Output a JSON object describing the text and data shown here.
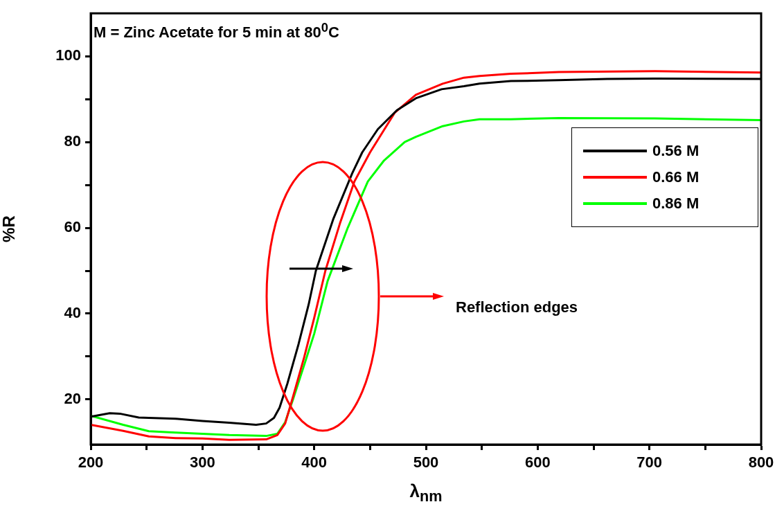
{
  "chart_data": {
    "type": "line",
    "title": "M = Zinc Acetate for 5 min at 80$^{0}$C",
    "xlabel": "λ$_{nm}$",
    "ylabel": "%R",
    "xlim": [
      200,
      800
    ],
    "ylim": [
      9.5,
      110
    ],
    "xticks": [
      200,
      {
        "value": 250,
        "label": null
      },
      300,
      {
        "value": 350,
        "label": null
      },
      400,
      {
        "value": 450,
        "label": null
      },
      500,
      {
        "value": 550,
        "label": null
      },
      600,
      {
        "value": 650,
        "label": null
      },
      700,
      {
        "value": 750,
        "label": null
      },
      800
    ],
    "yticks": [
      20,
      {
        "value": 30,
        "label": null
      },
      40,
      {
        "value": 50,
        "label": null
      },
      60,
      {
        "value": 70,
        "label": null
      },
      80,
      {
        "value": 90,
        "label": null
      },
      100
    ],
    "grid": false,
    "legend": "right",
    "line_style": "solid",
    "annotations": [
      "Reflection edges"
    ],
    "series": [
      {
        "name": "0.56 M",
        "color": "#000000",
        "x": [
          200,
          217,
          226,
          243,
          252,
          276,
          300,
          324,
          348,
          357,
          364,
          369,
          376,
          386,
          395,
          401.5,
          417,
          434,
          443,
          457,
          474,
          491,
          514,
          534,
          548,
          576,
          619,
          662,
          705,
          800
        ],
        "values": [
          16.0,
          16.8,
          16.7,
          15.8,
          15.7,
          15.5,
          15.0,
          14.6,
          14.1,
          14.4,
          15.7,
          18.1,
          23.7,
          32.9,
          42.1,
          50,
          62,
          72.7,
          77.6,
          83,
          87.4,
          90.2,
          92.3,
          93.0,
          93.6,
          94.2,
          94.4,
          94.7,
          94.8,
          94.7
        ]
      },
      {
        "name": "0.66 M",
        "color": "#ff0000",
        "x": [
          200,
          229,
          252,
          276,
          300,
          324,
          357,
          367,
          374,
          381,
          391,
          400,
          410,
          423,
          436,
          450,
          472,
          491,
          515,
          534,
          548,
          576,
          619,
          705,
          800
        ],
        "values": [
          14.1,
          12.7,
          11.4,
          11.0,
          10.9,
          10.6,
          10.7,
          11.7,
          14.4,
          20.6,
          29.8,
          39,
          50,
          61,
          70.8,
          77.6,
          86.8,
          91,
          93.6,
          95,
          95.4,
          95.9,
          96.3,
          96.5,
          96.2
        ]
      },
      {
        "name": "0.86 M",
        "color": "#00ff00",
        "x": [
          200,
          229,
          252,
          276,
          300,
          324,
          357,
          367,
          374,
          381,
          391,
          400,
          412,
          430,
          448,
          462.5,
          481,
          491,
          515,
          534,
          548,
          576,
          619,
          705,
          800
        ],
        "values": [
          16.2,
          14.1,
          12.6,
          12.3,
          12.0,
          11.7,
          11.5,
          12.0,
          14.7,
          20,
          28,
          35.3,
          47.6,
          60,
          70.8,
          75.7,
          80,
          81.2,
          83.7,
          84.8,
          85.3,
          85.3,
          85.6,
          85.5,
          85.1
        ]
      }
    ]
  }
}
